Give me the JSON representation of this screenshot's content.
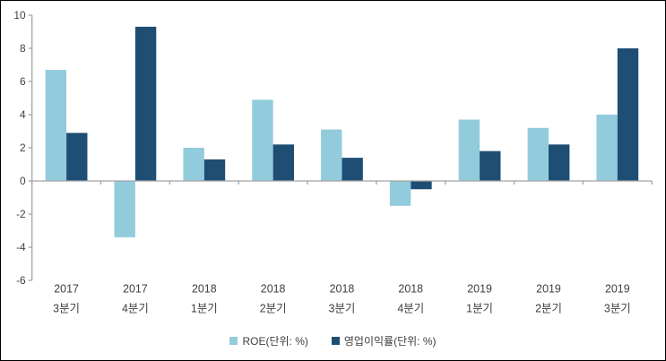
{
  "chart_data": {
    "type": "bar",
    "title": "",
    "xlabel": "",
    "ylabel": "",
    "categories": [
      [
        "2017",
        "3분기"
      ],
      [
        "2017",
        "4분기"
      ],
      [
        "2018",
        "1분기"
      ],
      [
        "2018",
        "2분기"
      ],
      [
        "2018",
        "3분기"
      ],
      [
        "2018",
        "4분기"
      ],
      [
        "2019",
        "1분기"
      ],
      [
        "2019",
        "2분기"
      ],
      [
        "2019",
        "3분기"
      ]
    ],
    "series": [
      {
        "name": "ROE(단위: %)",
        "color": "#92CBDC",
        "values": [
          6.7,
          -3.4,
          2.0,
          4.9,
          3.1,
          -1.5,
          3.7,
          3.2,
          4.0
        ]
      },
      {
        "name": "영업이익률(단위: %)",
        "color": "#1F4E74",
        "values": [
          2.9,
          9.3,
          1.3,
          2.2,
          1.4,
          -0.5,
          1.8,
          2.2,
          8.0
        ]
      }
    ],
    "ylim": [
      -6,
      10
    ],
    "ytick_labels": [
      "10",
      "8",
      "6",
      "4",
      "2",
      "0",
      "-2",
      "-4",
      "-6"
    ],
    "grid": false,
    "legend_position": "bottom-center",
    "axis_color": "#A3A3A3",
    "label_color": "#3F3F3F"
  }
}
